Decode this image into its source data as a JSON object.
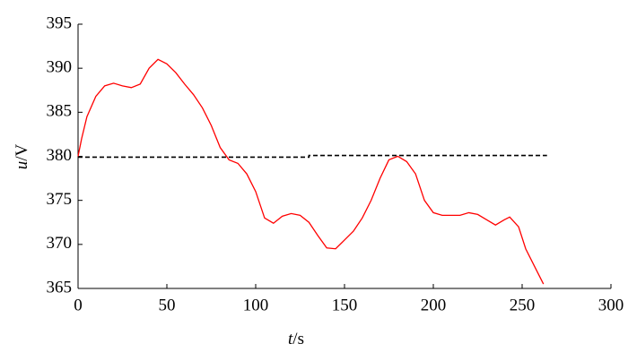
{
  "chart_data": {
    "type": "line",
    "xlabel": [
      "t",
      "/s"
    ],
    "ylabel": [
      "u",
      "/V"
    ],
    "xlim": [
      0,
      300
    ],
    "ylim": [
      365,
      395
    ],
    "xticks": [
      0,
      50,
      100,
      150,
      200,
      250,
      300
    ],
    "yticks": [
      365,
      370,
      375,
      380,
      385,
      390,
      395
    ],
    "series": [
      {
        "color": "#ff0000",
        "dash": false,
        "x": [
          0,
          2,
          5,
          10,
          15,
          20,
          25,
          30,
          35,
          40,
          45,
          50,
          55,
          60,
          65,
          70,
          75,
          80,
          85,
          90,
          95,
          100,
          105,
          110,
          115,
          120,
          125,
          130,
          135,
          140,
          145,
          150,
          155,
          160,
          165,
          170,
          175,
          180,
          185,
          190,
          195,
          200,
          205,
          210,
          215,
          220,
          225,
          230,
          235,
          240,
          243,
          248,
          252,
          257,
          262
        ],
        "values": [
          380,
          382,
          384.5,
          386.8,
          388,
          388.3,
          388,
          387.8,
          388.2,
          390,
          391,
          390.5,
          389.5,
          388.2,
          387,
          385.5,
          383.5,
          381,
          379.6,
          379.2,
          378,
          376,
          373,
          372.4,
          373.2,
          373.5,
          373.3,
          372.5,
          371,
          369.6,
          369.5,
          370.5,
          371.5,
          373,
          375,
          377.5,
          379.6,
          380,
          379.4,
          378,
          375,
          373.6,
          373.3,
          373.3,
          373.3,
          373.6,
          373.4,
          372.8,
          372.2,
          372.8,
          373.1,
          372,
          369.5,
          367.5,
          365.5
        ]
      },
      {
        "color": "#000000",
        "dash": true,
        "x": [
          0,
          130,
          130,
          264
        ],
        "values": [
          379.9,
          379.9,
          380.1,
          380.1
        ]
      }
    ]
  }
}
